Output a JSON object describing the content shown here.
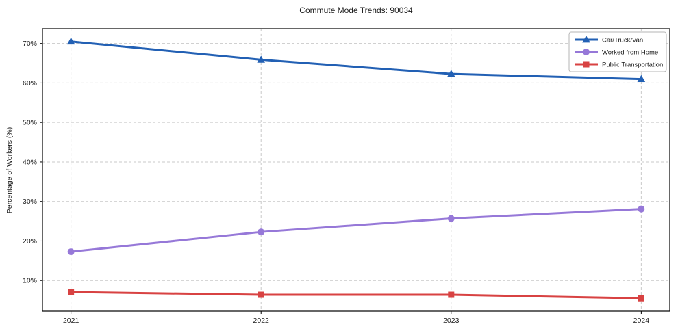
{
  "title": "Commute Mode Trends: 90034",
  "chart_data": {
    "type": "line",
    "title": "Commute Mode Trends: 90034",
    "xlabel": "",
    "ylabel": "Percentage of Workers (%)",
    "x": [
      2021,
      2022,
      2023,
      2024
    ],
    "x_tick_labels": [
      "2021",
      "2022",
      "2023",
      "2024"
    ],
    "y_ticks": [
      10,
      20,
      30,
      40,
      50,
      60,
      70
    ],
    "y_tick_labels": [
      "10%",
      "20%",
      "30%",
      "40%",
      "50%",
      "60%",
      "70%"
    ],
    "xlim": [
      2020.85,
      2024.15
    ],
    "ylim": [
      2.25,
      73.75
    ],
    "grid": true,
    "grid_style": "dashed",
    "legend_position": "upper right",
    "series": [
      {
        "name": "Car/Truck/Van",
        "color": "#2260b4",
        "marker": "triangle",
        "values": [
          70.5,
          65.9,
          62.3,
          61.0
        ]
      },
      {
        "name": "Worked from Home",
        "color": "#9678d8",
        "marker": "circle",
        "values": [
          17.3,
          22.3,
          25.7,
          28.1
        ]
      },
      {
        "name": "Public Transportation",
        "color": "#d84242",
        "marker": "square",
        "values": [
          7.1,
          6.4,
          6.4,
          5.5
        ]
      }
    ]
  },
  "colors": {
    "background": "#ffffff",
    "grid": "#c9c9c9",
    "axis": "#000000",
    "text": "#1a1a1a",
    "legend_border": "#b5b5b5"
  }
}
